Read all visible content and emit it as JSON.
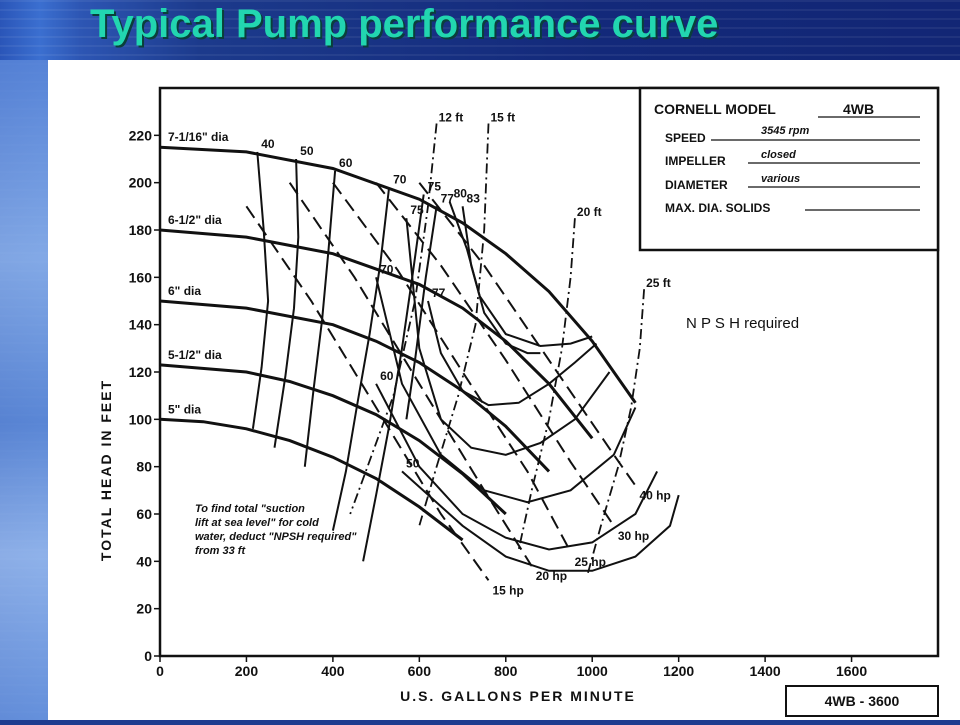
{
  "slide": {
    "title": "Typical Pump performance curve"
  },
  "chart_data": {
    "type": "line",
    "xlabel": "U.S. GALLONS PER MINUTE",
    "ylabel": "TOTAL HEAD IN FEET",
    "xlim": [
      0,
      1800
    ],
    "ylim": [
      0,
      240
    ],
    "x_ticks": [
      0,
      200,
      400,
      600,
      800,
      1000,
      1200,
      1400,
      1600
    ],
    "y_ticks": [
      0,
      20,
      40,
      60,
      80,
      100,
      120,
      140,
      160,
      180,
      200,
      220
    ],
    "grid": false,
    "impeller_curves": [
      {
        "name": "7-1/16\" dia",
        "x": [
          0,
          200,
          400,
          600,
          700,
          800,
          900,
          1000,
          1100
        ],
        "y": [
          215,
          213,
          206,
          193,
          183,
          170,
          154,
          133,
          107
        ]
      },
      {
        "name": "6-1/2\" dia",
        "x": [
          0,
          200,
          400,
          600,
          700,
          800,
          900,
          1000
        ],
        "y": [
          180,
          177,
          170,
          157,
          147,
          133,
          115,
          92
        ]
      },
      {
        "name": "6\" dia",
        "x": [
          0,
          200,
          400,
          500,
          600,
          700,
          800,
          900
        ],
        "y": [
          150,
          147,
          140,
          133,
          124,
          112,
          97,
          78
        ]
      },
      {
        "name": "5-1/2\" dia",
        "x": [
          0,
          200,
          300,
          400,
          500,
          600,
          700,
          800
        ],
        "y": [
          123,
          120,
          116,
          110,
          102,
          91,
          77,
          60
        ]
      },
      {
        "name": "5\" dia",
        "x": [
          0,
          100,
          200,
          300,
          400,
          500,
          600,
          700
        ],
        "y": [
          100,
          99,
          96,
          91,
          84,
          75,
          63,
          49
        ]
      }
    ],
    "efficiency_curves": [
      {
        "label": "40",
        "x": [
          225,
          240,
          250,
          235,
          215
        ],
        "y": [
          213,
          180,
          150,
          122,
          96
        ]
      },
      {
        "label": "50",
        "x": [
          315,
          320,
          310,
          290,
          265
        ],
        "y": [
          210,
          177,
          147,
          118,
          88
        ]
      },
      {
        "label": "60",
        "x": [
          405,
          390,
          375,
          355,
          335
        ],
        "y": [
          205,
          172,
          142,
          112,
          80
        ]
      },
      {
        "label": "70",
        "x": [
          530,
          510,
          485,
          455,
          430,
          400
        ],
        "y": [
          198,
          166,
          136,
          105,
          78,
          53
        ]
      },
      {
        "label": "75",
        "x": [
          610,
          585,
          560,
          530,
          500,
          470
        ],
        "y": [
          195,
          162,
          130,
          97,
          68,
          40
        ]
      },
      {
        "label": "77",
        "x": [
          640,
          615,
          590,
          570
        ],
        "y": [
          190,
          160,
          125,
          100
        ]
      },
      {
        "label": "80",
        "x": [
          670,
          710,
          740,
          800,
          880,
          950,
          1000
        ],
        "y": [
          192,
          172,
          152,
          136,
          131,
          132,
          135
        ]
      },
      {
        "label": "83",
        "x": [
          700,
          720,
          750,
          800,
          850,
          880
        ],
        "y": [
          190,
          165,
          145,
          132,
          128,
          128
        ]
      },
      {
        "label": "77",
        "x": [
          620,
          650,
          700,
          760,
          830,
          900,
          960,
          1010
        ],
        "y": [
          150,
          128,
          112,
          106,
          107,
          115,
          124,
          132
        ]
      },
      {
        "label": "75",
        "x": [
          570,
          600,
          650,
          720,
          800,
          880,
          960,
          1040
        ],
        "y": [
          185,
          130,
          100,
          88,
          85,
          90,
          100,
          120
        ]
      },
      {
        "label": "70",
        "x": [
          500,
          560,
          650,
          750,
          850,
          950,
          1050,
          1100
        ],
        "y": [
          160,
          115,
          85,
          70,
          65,
          70,
          85,
          105
        ]
      },
      {
        "label": "60",
        "x": [
          500,
          600,
          700,
          800,
          900,
          1000,
          1100,
          1150
        ],
        "y": [
          115,
          80,
          60,
          50,
          45,
          48,
          60,
          78
        ]
      },
      {
        "label": "50",
        "x": [
          560,
          700,
          800,
          900,
          1000,
          1100,
          1180,
          1200
        ],
        "y": [
          78,
          55,
          42,
          36,
          36,
          42,
          55,
          68
        ]
      }
    ],
    "power_curves": [
      {
        "label": "15 hp",
        "x": [
          200,
          350,
          500,
          650,
          760
        ],
        "y": [
          190,
          150,
          105,
          60,
          32
        ]
      },
      {
        "label": "20 hp",
        "x": [
          300,
          450,
          600,
          750,
          860
        ],
        "y": [
          200,
          160,
          115,
          70,
          38
        ]
      },
      {
        "label": "25 hp",
        "x": [
          400,
          550,
          700,
          850,
          950
        ],
        "y": [
          200,
          163,
          120,
          78,
          44
        ]
      },
      {
        "label": "30 hp",
        "x": [
          500,
          650,
          800,
          950,
          1050
        ],
        "y": [
          200,
          165,
          125,
          82,
          55
        ]
      },
      {
        "label": "40 hp",
        "x": [
          600,
          750,
          900,
          1050,
          1100
        ],
        "y": [
          200,
          165,
          125,
          85,
          72
        ]
      }
    ],
    "npsh_curves": [
      {
        "label": "12 ft",
        "x": [
          640,
          620,
          590,
          540,
          480,
          440
        ],
        "y": [
          225,
          190,
          150,
          110,
          80,
          60
        ]
      },
      {
        "label": "15 ft",
        "x": [
          760,
          750,
          730,
          690,
          640,
          600
        ],
        "y": [
          225,
          180,
          140,
          110,
          80,
          55
        ]
      },
      {
        "label": "20 ft",
        "x": [
          960,
          950,
          930,
          900,
          860,
          830
        ],
        "y": [
          185,
          160,
          130,
          100,
          70,
          45
        ]
      },
      {
        "label": "25 ft",
        "x": [
          1120,
          1110,
          1090,
          1060,
          1020,
          990
        ],
        "y": [
          155,
          130,
          105,
          80,
          55,
          35
        ]
      }
    ],
    "annotations": {
      "npsh_required": "N P S H required",
      "note": [
        "To find total \"suction",
        "lift at sea level\" for cold",
        "water, deduct \"NPSH required\"",
        "from 33 ft"
      ],
      "curve_code": "4WB - 3600"
    },
    "info_box": {
      "model_label": "CORNELL MODEL",
      "model_value": "4WB",
      "speed_label": "SPEED",
      "speed_value": "3545 rpm",
      "impeller_label": "IMPELLER",
      "impeller_value": "closed",
      "diameter_label": "DIAMETER",
      "diameter_value": "various",
      "solids_label": "MAX. DIA. SOLIDS",
      "solids_value": ""
    },
    "colors": {
      "background": "#1e3c8f",
      "title": "#22d6b0",
      "ink": "#111111",
      "paper": "#ffffff"
    }
  }
}
